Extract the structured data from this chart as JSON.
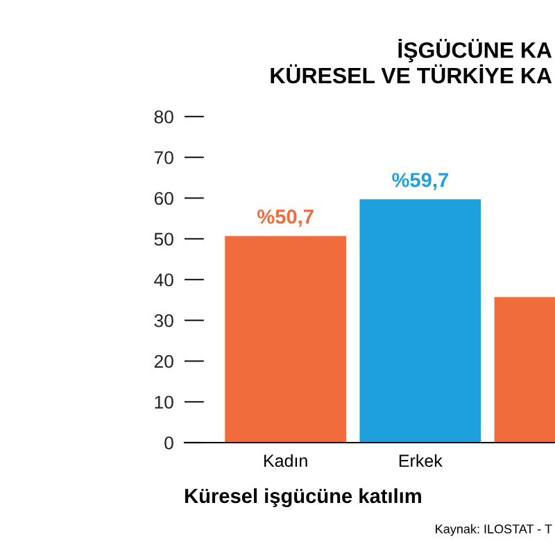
{
  "chart_data": {
    "type": "bar",
    "title": "İŞGÜCÜNE KA\nKÜRESEL VE TÜRKİYE KA",
    "categories": [
      "Kadın",
      "Erkek",
      null
    ],
    "values": [
      50.7,
      59.7,
      35.7
    ],
    "colors": [
      "#f06c3c",
      "#1ea0dc",
      "#f06c3c"
    ],
    "value_labels": [
      "%50,7",
      "%59,7",
      null
    ],
    "xlabel": "Küresel işgücüne katılım",
    "ylim": [
      0,
      80
    ],
    "yticks": [
      0,
      10,
      20,
      30,
      40,
      50,
      60,
      70,
      80
    ],
    "annotations": [
      "Kaynak: ILOSTAT - T"
    ],
    "grid": false
  }
}
